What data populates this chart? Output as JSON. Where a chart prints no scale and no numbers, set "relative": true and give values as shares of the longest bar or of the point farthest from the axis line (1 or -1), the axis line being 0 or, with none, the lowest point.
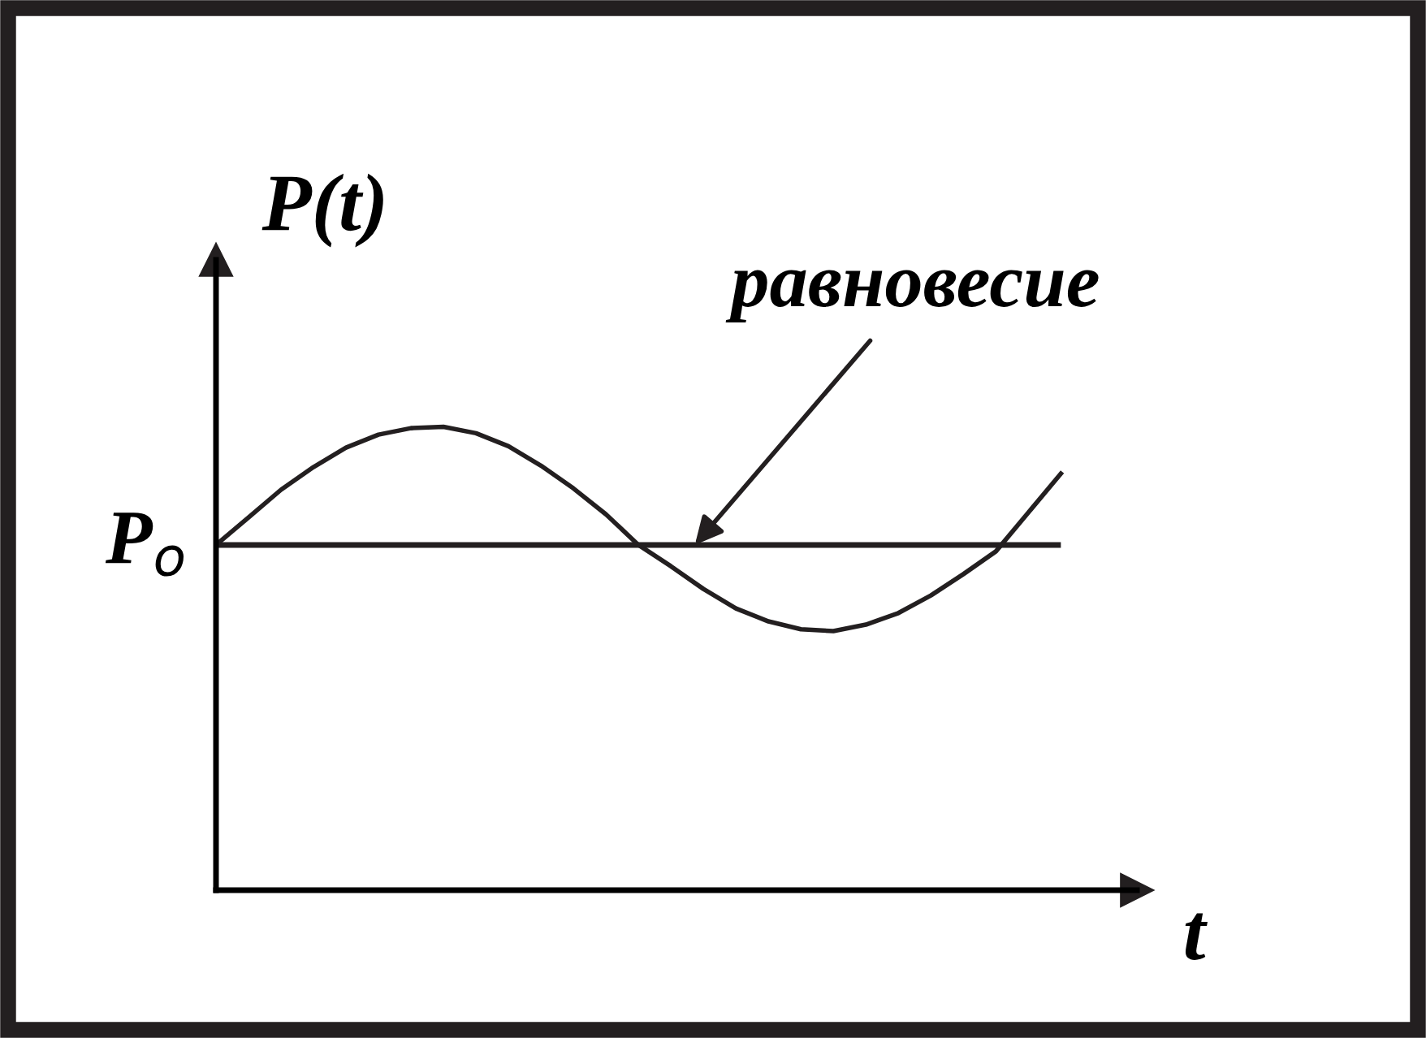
{
  "chart_data": {
    "type": "line",
    "relative": true,
    "ylabel": "P(t)",
    "xlabel": "t",
    "color": "#231f20",
    "categories": [
      null,
      null,
      null,
      null,
      null,
      null,
      null,
      null,
      null,
      null,
      null,
      null,
      null,
      null,
      null,
      null,
      null,
      null,
      null,
      null,
      null,
      null,
      null,
      null,
      null,
      null,
      null
    ],
    "series": [
      {
        "color": "#231f20",
        "values": [
          0.745,
          0.804,
          0.864,
          0.913,
          0.955,
          0.983,
          0.997,
          1.0,
          0.986,
          0.958,
          0.916,
          0.867,
          0.811,
          0.745,
          0.699,
          0.65,
          0.608,
          0.58,
          0.563,
          0.559,
          0.573,
          0.598,
          0.636,
          0.682,
          0.731,
          0.815,
          0.899
        ]
      }
    ],
    "ref_lines": [
      {
        "axis": "y",
        "value": 0.745,
        "label": "P$_{o}$",
        "color": "#231f20"
      }
    ],
    "annotations": [
      {
        "text": "равновесие",
        "y": 0.745
      }
    ],
    "legend": false,
    "marker": "none",
    "line_style": "solid"
  }
}
